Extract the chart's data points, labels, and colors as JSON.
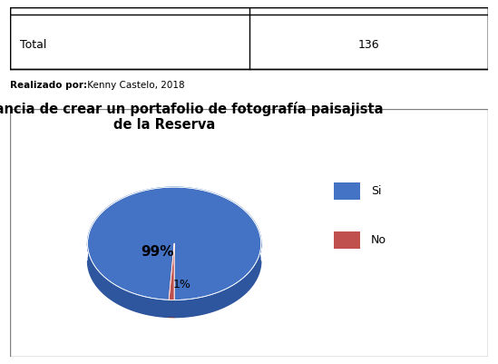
{
  "title": "Importancia de crear un portafolio de fotografía paisajista\nde la Reserva",
  "slices": [
    99,
    1
  ],
  "labels": [
    "Si",
    "No"
  ],
  "colors_top": [
    "#4472C4",
    "#C0504D"
  ],
  "colors_side": [
    "#2E569E",
    "#8B2020"
  ],
  "pct_labels": [
    "99%",
    "1%"
  ],
  "legend_labels": [
    "Si",
    "No"
  ],
  "title_fontsize": 10.5,
  "background_color": "#FFFFFF",
  "startangle": 90,
  "table_row": [
    "Total",
    "136"
  ],
  "realizado_por": "Realizado por: Kenny Castelo, 2018",
  "chart_border_color": "#808080"
}
